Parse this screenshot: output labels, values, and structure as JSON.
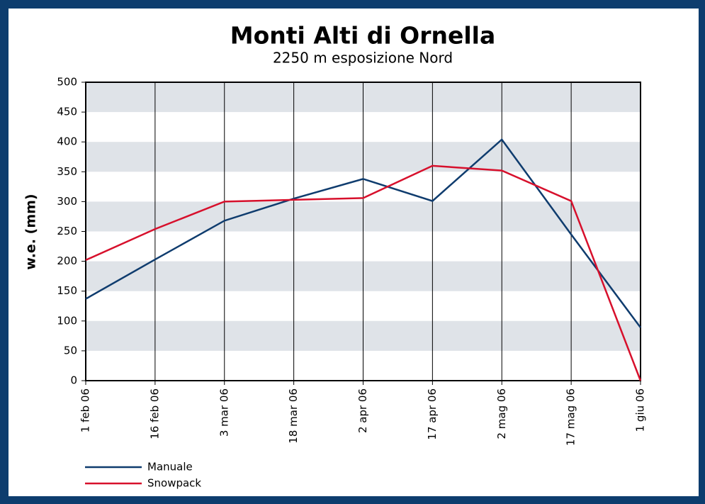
{
  "chart_data": {
    "type": "line",
    "title": "Monti Alti di Ornella",
    "subtitle": "2250 m esposizione Nord",
    "y_label": "w.e. (mm)",
    "categories": [
      "1 feb 06",
      "16 feb 06",
      "3 mar 06",
      "18 mar 06",
      "2 apr 06",
      "17 apr 06",
      "2 mag 06",
      "17 mag 06",
      "1 giu 06"
    ],
    "series": [
      {
        "name": "Manuale",
        "color": "#0f3c6e",
        "values": [
          137,
          203,
          268,
          305,
          338,
          301,
          404,
          245,
          89
        ]
      },
      {
        "name": "Snowpack",
        "color": "#d7102c",
        "values": [
          202,
          254,
          300,
          303,
          306,
          360,
          352,
          301,
          0
        ]
      }
    ],
    "ylim": [
      0,
      500
    ],
    "yticks": [
      0,
      50,
      100,
      150,
      200,
      250,
      300,
      350,
      400,
      450,
      500
    ],
    "grid": true
  }
}
